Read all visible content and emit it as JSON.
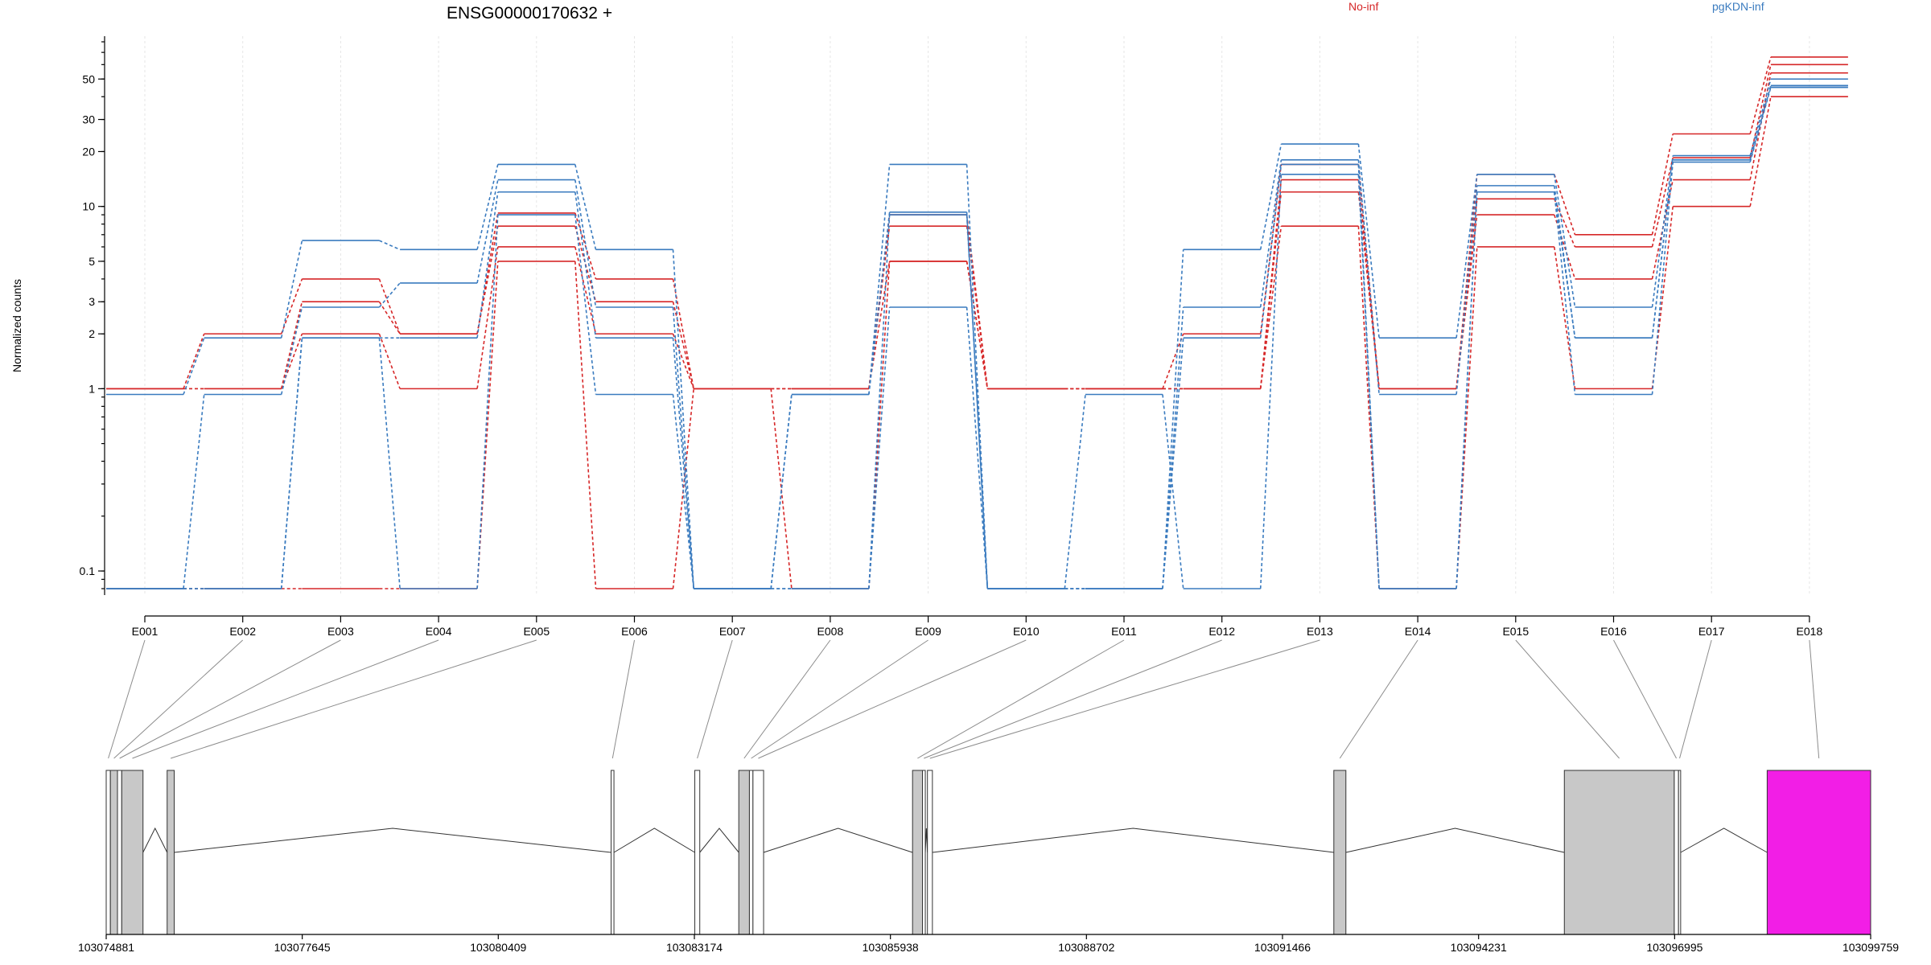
{
  "chart_data": {
    "type": "line",
    "title": "ENSG00000170632 +",
    "ylabel": "Normalized counts",
    "xlabel": "",
    "y_scale": "log",
    "ylim": [
      0.08,
      80
    ],
    "y_ticks": [
      0.1,
      1,
      2,
      3,
      5,
      10,
      20,
      30,
      50
    ],
    "grid": true,
    "legend_placement": "top-right",
    "categories": [
      "E001",
      "E002",
      "E003",
      "E004",
      "E005",
      "E006",
      "E007",
      "E008",
      "E009",
      "E010",
      "E011",
      "E012",
      "E013",
      "E014",
      "E015",
      "E016",
      "E017",
      "E018"
    ],
    "series": [
      {
        "name": "No-inf",
        "color": "#d62728",
        "values": [
          1,
          2,
          4,
          2,
          9.2,
          4,
          1,
          1,
          9,
          1,
          1,
          2,
          17,
          1,
          15,
          7,
          25,
          66
        ]
      },
      {
        "color": "#d62728",
        "values": [
          1,
          1,
          3,
          2,
          7.8,
          3,
          1,
          1,
          7.8,
          1,
          1,
          1,
          14,
          1,
          11,
          6,
          18.5,
          60
        ]
      },
      {
        "color": "#d62728",
        "values": [
          1,
          1,
          2,
          1,
          6,
          2,
          1,
          1,
          5,
          1,
          1,
          1,
          12,
          1,
          9,
          4,
          14,
          54
        ]
      },
      {
        "color": "#d62728",
        "values": [
          0.08,
          0.08,
          0.08,
          0.08,
          5,
          0.08,
          1,
          0.08,
          5,
          1,
          1,
          1,
          7.8,
          0.08,
          6,
          1,
          10,
          40
        ]
      },
      {
        "name": "pgKDN-inf",
        "color": "#3a7bbf",
        "values": [
          0.93,
          1.9,
          6.5,
          5.8,
          17,
          5.8,
          0.08,
          0.93,
          17,
          0.08,
          0.08,
          5.8,
          22,
          1.9,
          15,
          2.8,
          19,
          50
        ]
      },
      {
        "color": "#3a7bbf",
        "values": [
          0.08,
          0.93,
          2.8,
          3.8,
          14,
          2.8,
          0.08,
          0.93,
          9.3,
          0.08,
          0.08,
          2.8,
          18,
          0.93,
          13,
          1.9,
          18,
          46
        ]
      },
      {
        "color": "#3a7bbf",
        "values": [
          0.08,
          0.08,
          1.9,
          1.9,
          12,
          1.9,
          0.08,
          0.08,
          9,
          0.08,
          0.08,
          1.9,
          17,
          0.08,
          12,
          1.9,
          18,
          46
        ]
      },
      {
        "color": "#3a7bbf",
        "values": [
          0.08,
          0.08,
          1.9,
          0.08,
          9,
          0.93,
          0.08,
          0.08,
          2.8,
          0.08,
          0.93,
          0.08,
          15,
          0.08,
          12,
          0.93,
          17.5,
          45
        ]
      }
    ],
    "legend": [
      {
        "label": "No-inf",
        "color": "#d62728"
      },
      {
        "label": "pgKDN-inf",
        "color": "#3a7bbf"
      }
    ],
    "genomic_axis": {
      "range": [
        103074881,
        103099759
      ],
      "ticks": [
        103074881,
        103077645,
        103080409,
        103083174,
        103085938,
        103088702,
        103091466,
        103094231,
        103096995,
        103099759
      ]
    },
    "exons": [
      {
        "id": "E001",
        "start": 103074881,
        "end": 103074940,
        "fill": "#ffffff"
      },
      {
        "id": "E002",
        "start": 103074940,
        "end": 103075040,
        "fill": "#c8c8c8"
      },
      {
        "id": "E003",
        "start": 103075040,
        "end": 103075100,
        "fill": "#ffffff"
      },
      {
        "id": "E004",
        "start": 103075100,
        "end": 103075400,
        "fill": "#c8c8c8"
      },
      {
        "id": "E005",
        "start": 103075740,
        "end": 103075840,
        "fill": "#c8c8c8"
      },
      {
        "id": "E006",
        "start": 103082000,
        "end": 103082040,
        "fill": "#ffffff"
      },
      {
        "id": "E007",
        "start": 103083180,
        "end": 103083250,
        "fill": "#ffffff"
      },
      {
        "id": "E008",
        "start": 103083800,
        "end": 103083950,
        "fill": "#c8c8c8"
      },
      {
        "id": "E009",
        "start": 103083950,
        "end": 103084000,
        "fill": "#ffffff"
      },
      {
        "id": "E010",
        "start": 103084000,
        "end": 103084150,
        "fill": "#ffffff"
      },
      {
        "id": "E011",
        "start": 103086250,
        "end": 103086390,
        "fill": "#c8c8c8"
      },
      {
        "id": "E012",
        "start": 103086390,
        "end": 103086430,
        "fill": "#ffffff"
      },
      {
        "id": "E013",
        "start": 103086460,
        "end": 103086530,
        "fill": "#ffffff"
      },
      {
        "id": "E014",
        "start": 103092190,
        "end": 103092360,
        "fill": "#c8c8c8"
      },
      {
        "id": "E015",
        "start": 103095440,
        "end": 103096990,
        "fill": "#c8c8c8"
      },
      {
        "id": "E016",
        "start": 103096990,
        "end": 103097050,
        "fill": "#ffffff"
      },
      {
        "id": "E017",
        "start": 103097050,
        "end": 103097080,
        "fill": "#ffffff"
      },
      {
        "id": "E018",
        "start": 103098300,
        "end": 103099759,
        "fill": "#f21ee6"
      }
    ]
  }
}
